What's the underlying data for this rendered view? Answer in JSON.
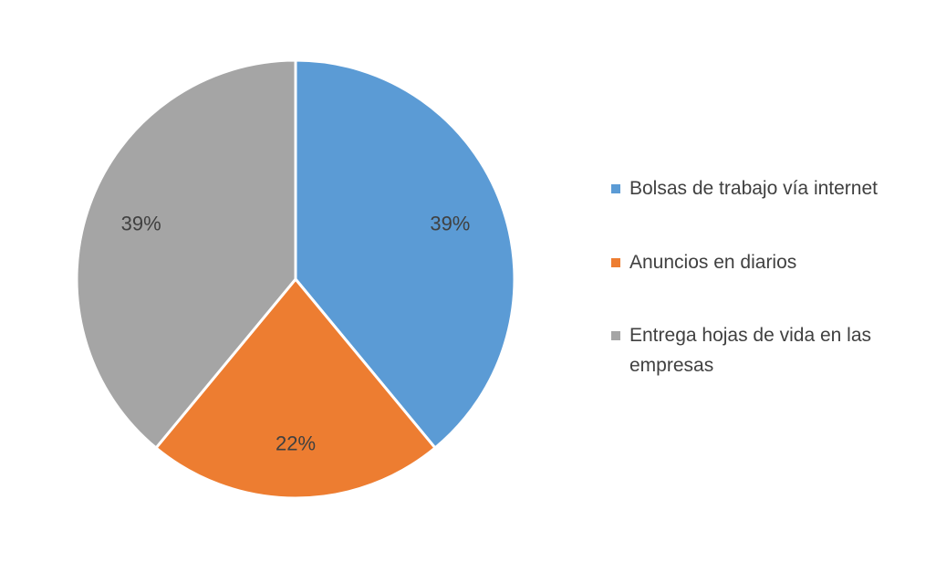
{
  "chart_data": {
    "type": "pie",
    "title": "",
    "legend_position": "right",
    "slices": [
      {
        "label": "Bolsas de trabajo vía internet",
        "value": 39,
        "display": "39%",
        "color": "#5B9BD5"
      },
      {
        "label": "Anuncios en diarios",
        "value": 22,
        "display": "22%",
        "color": "#ED7D31"
      },
      {
        "label": "Entrega hojas de vida en las empresas",
        "value": 39,
        "display": "39%",
        "color": "#A5A5A5"
      }
    ]
  }
}
